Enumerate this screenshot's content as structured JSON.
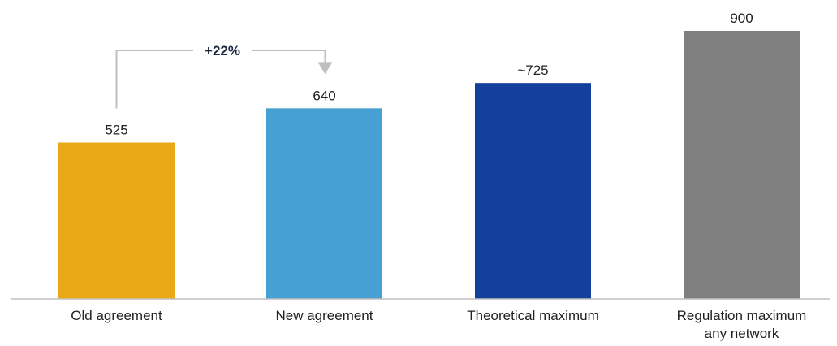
{
  "chart_data": {
    "type": "bar",
    "categories": [
      [
        "Old agreement"
      ],
      [
        "New agreement"
      ],
      [
        "Theoretical maximum"
      ],
      [
        "Regulation maximum",
        "any network"
      ]
    ],
    "values": [
      525,
      640,
      725,
      900
    ],
    "value_labels": [
      "525",
      "640",
      "~725",
      "900"
    ],
    "colors": [
      "#E9A816",
      "#46A1D2",
      "#13409A",
      "#808080"
    ],
    "ylim": [
      0,
      900
    ],
    "grid": false,
    "legend": "none",
    "title": "",
    "xlabel": "",
    "ylabel": "",
    "annotation": {
      "text": "+22%",
      "from_category": 0,
      "to_category": 1,
      "color": "#BFBFBF"
    },
    "axis_color": "#BFBFBF"
  }
}
